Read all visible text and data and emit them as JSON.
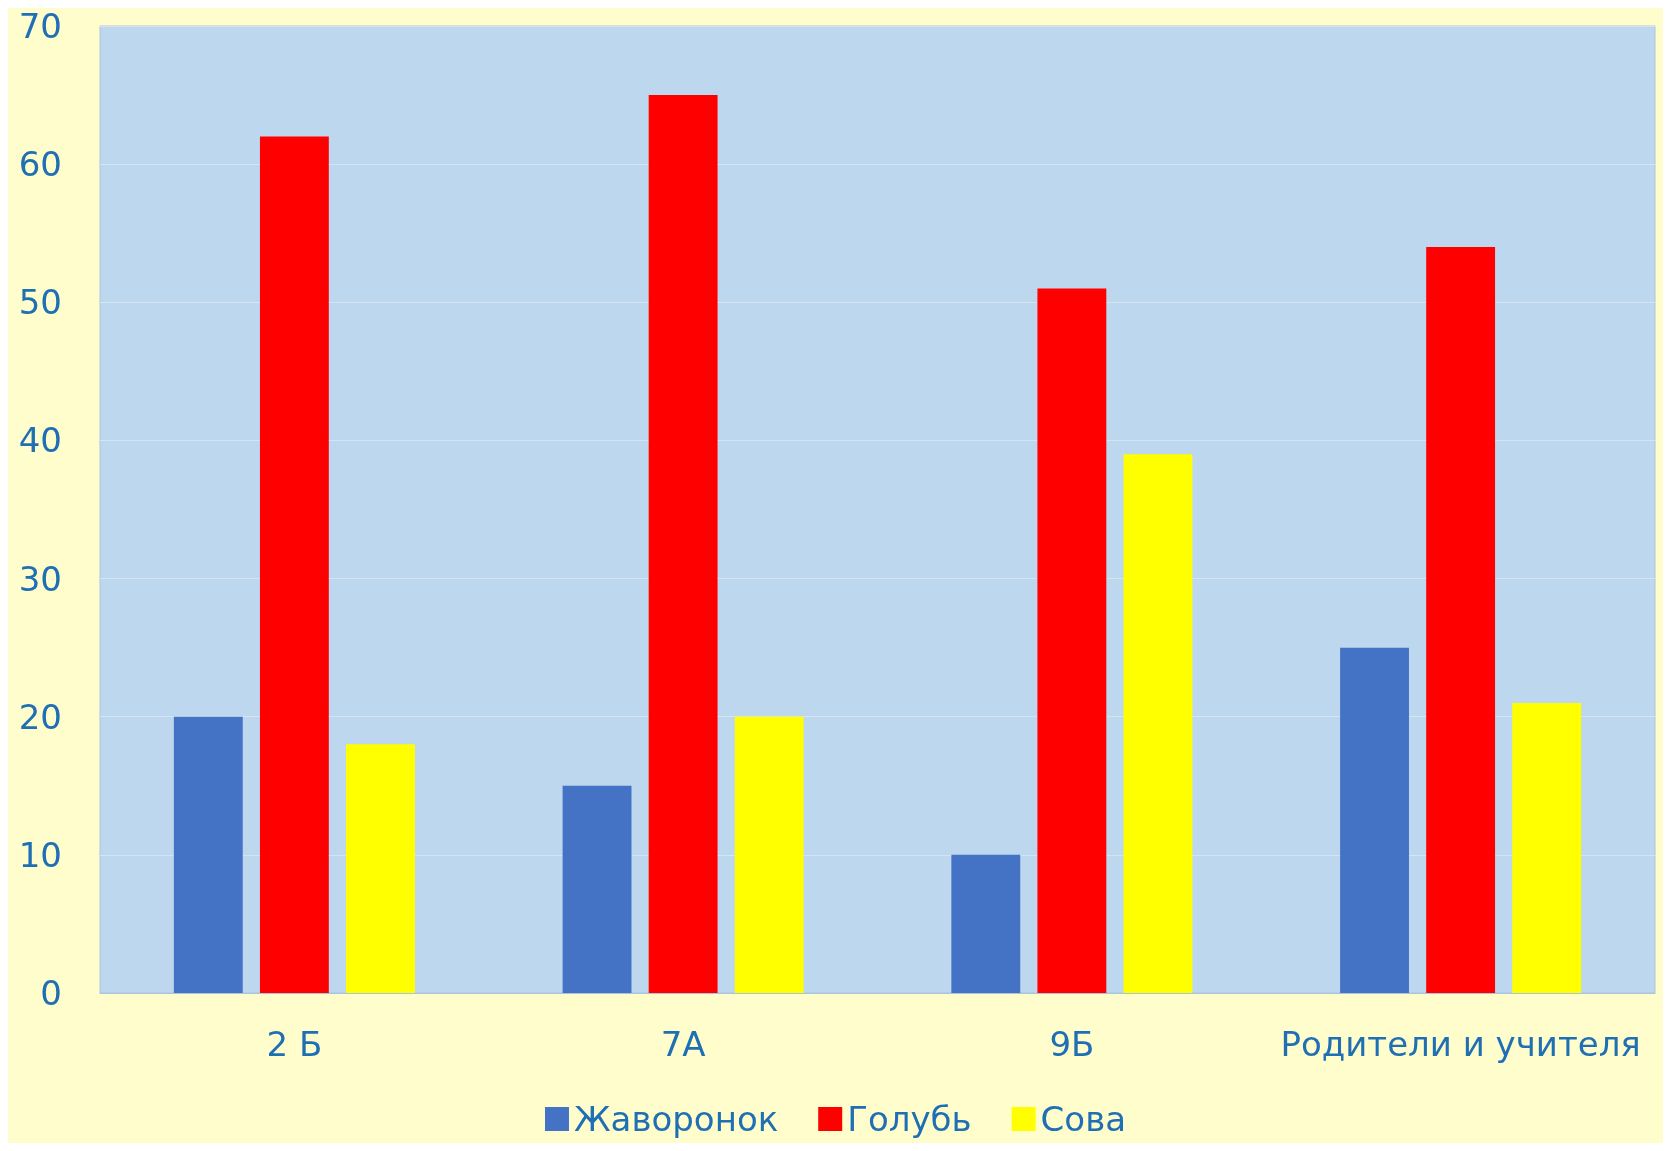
{
  "chart_data": {
    "type": "bar",
    "categories": [
      "2 Б",
      "7А",
      "9Б",
      "Родители и учителя"
    ],
    "series": [
      {
        "name": "Жаворонок",
        "color": "#4472c4",
        "values": [
          20,
          15,
          10,
          25
        ]
      },
      {
        "name": "Голубь",
        "color": "#ff0000",
        "values": [
          62,
          65,
          51,
          54
        ]
      },
      {
        "name": "Сова",
        "color": "#ffff00",
        "values": [
          18,
          20,
          39,
          21
        ]
      }
    ],
    "ylim": [
      0,
      70
    ],
    "yticks": [
      0,
      10,
      20,
      30,
      40,
      50,
      60,
      70
    ],
    "grid": "y",
    "legend": "bottom"
  }
}
